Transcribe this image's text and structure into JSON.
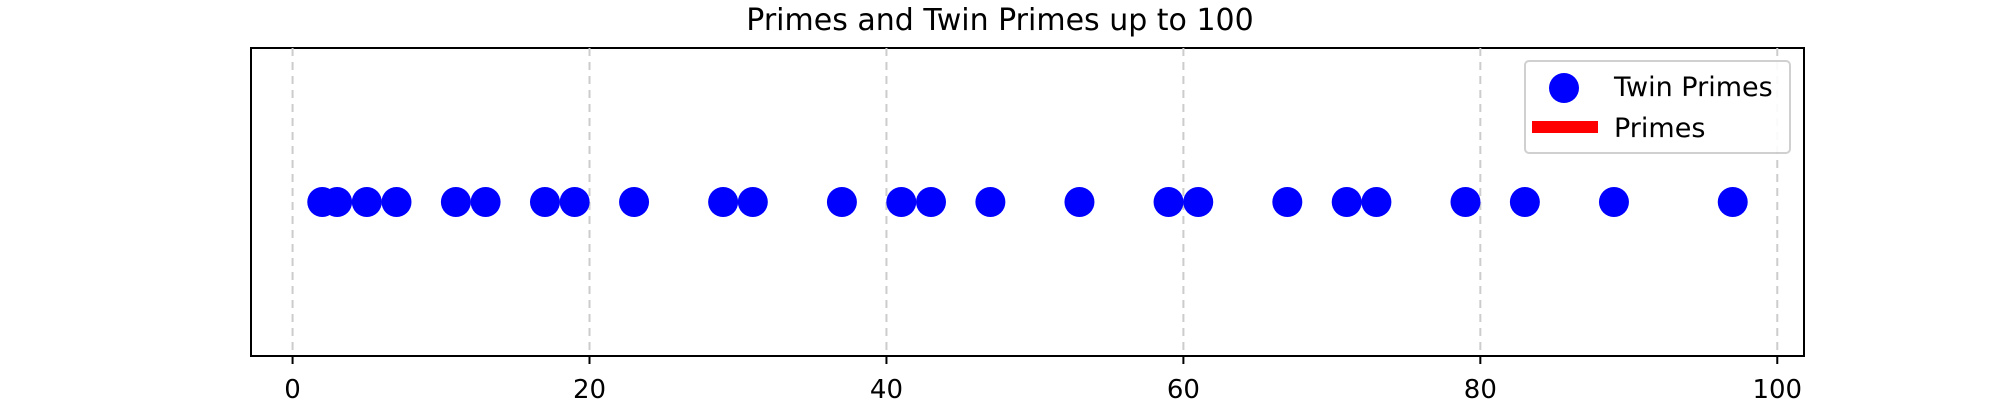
{
  "chart_data": {
    "type": "scatter",
    "title": "Primes and Twin Primes up to 100",
    "xlabel": "",
    "ylabel": "",
    "xlim": [
      -2.8,
      101.8
    ],
    "ylim": [
      -1,
      1
    ],
    "x_ticks": [
      0,
      20,
      40,
      60,
      80,
      100
    ],
    "grid": {
      "x": true,
      "y": false,
      "style": "dashed"
    },
    "legend": {
      "placement": "top-right",
      "entries": [
        {
          "label": "Twin Primes",
          "marker": "circle",
          "color": "#0000ff"
        },
        {
          "label": "Primes",
          "marker": "line",
          "color": "#ff0000"
        }
      ]
    },
    "series": [
      {
        "name": "Twin Primes",
        "color": "#0000ff",
        "marker": "circle",
        "x": [
          2,
          3,
          5,
          7,
          11,
          13,
          17,
          19,
          23,
          29,
          31,
          37,
          41,
          43,
          47,
          53,
          59,
          61,
          67,
          71,
          73,
          79,
          83,
          89,
          97
        ],
        "y": [
          0,
          0,
          0,
          0,
          0,
          0,
          0,
          0,
          0,
          0,
          0,
          0,
          0,
          0,
          0,
          0,
          0,
          0,
          0,
          0,
          0,
          0,
          0,
          0,
          0
        ]
      }
    ]
  }
}
